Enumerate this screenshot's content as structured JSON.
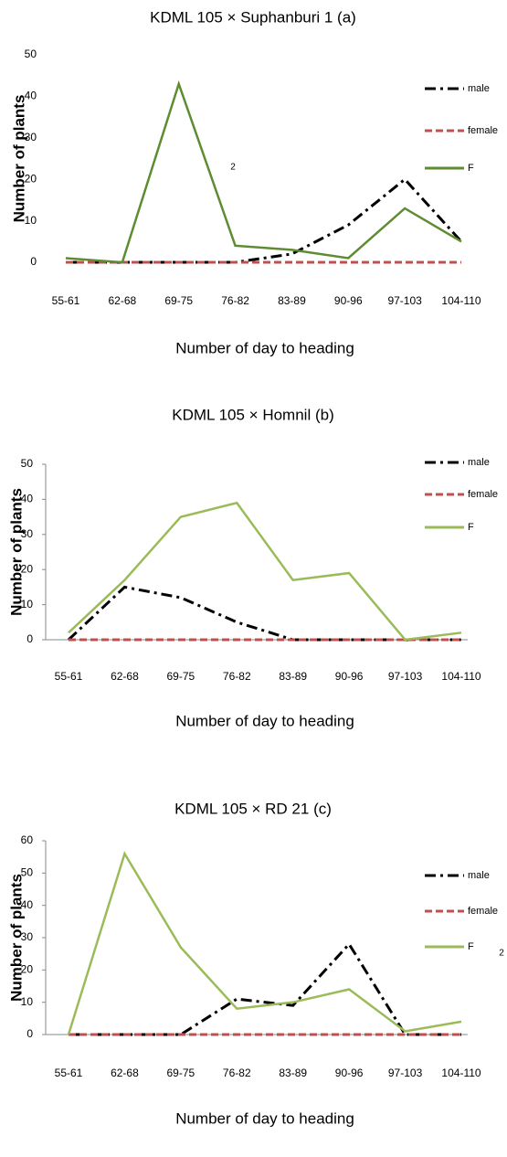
{
  "chart_data": [
    {
      "type": "line",
      "title": "KDML 105 × Suphanburi 1 (a)",
      "y_label": "Number of plants",
      "x_label": "Number of day to heading",
      "categories": [
        "55-61",
        "62-68",
        "69-75",
        "76-82",
        "83-89",
        "90-96",
        "97-103",
        "104-110"
      ],
      "series": [
        {
          "name": "male",
          "color": "#000000",
          "values": [
            0,
            0,
            0,
            0,
            2,
            9,
            20,
            5
          ]
        },
        {
          "name": "female",
          "color": "#c0504d",
          "values": [
            0,
            0,
            0,
            0,
            0,
            0,
            0,
            0
          ]
        },
        {
          "name": "F",
          "color": "#5e8c31",
          "values": [
            1,
            0,
            43,
            4,
            3,
            1,
            13,
            5
          ]
        }
      ],
      "ylim": [
        0,
        50
      ],
      "yticks": [
        0,
        10,
        20,
        30,
        40,
        50
      ],
      "axis_lines": false,
      "legend": "right",
      "annotation": "2"
    },
    {
      "type": "line",
      "title": "KDML 105 × Homnil (b)",
      "y_label": "Number of plants",
      "x_label": "Number of day to heading",
      "categories": [
        "55-61",
        "62-68",
        "69-75",
        "76-82",
        "83-89",
        "90-96",
        "97-103",
        "104-110"
      ],
      "series": [
        {
          "name": "male",
          "color": "#000000",
          "values": [
            0,
            15,
            12,
            5,
            0,
            0,
            0,
            0
          ]
        },
        {
          "name": "female",
          "color": "#c0504d",
          "values": [
            0,
            0,
            0,
            0,
            0,
            0,
            0,
            0
          ]
        },
        {
          "name": "F",
          "color": "#9bbb59",
          "values": [
            2,
            17,
            35,
            39,
            17,
            19,
            0,
            2
          ]
        }
      ],
      "ylim": [
        0,
        50
      ],
      "yticks": [
        0,
        10,
        20,
        30,
        40,
        50
      ],
      "axis_lines": true,
      "legend": "right"
    },
    {
      "type": "line",
      "title": "KDML 105 × RD 21 (c)",
      "y_label": "Number of plants",
      "x_label": "Number of day to heading",
      "categories": [
        "55-61",
        "62-68",
        "69-75",
        "76-82",
        "83-89",
        "90-96",
        "97-103",
        "104-110"
      ],
      "series": [
        {
          "name": "male",
          "color": "#000000",
          "values": [
            0,
            0,
            0,
            11,
            9,
            28,
            0,
            0
          ]
        },
        {
          "name": "female",
          "color": "#c0504d",
          "values": [
            0,
            0,
            0,
            0,
            0,
            0,
            0,
            0
          ]
        },
        {
          "name": "F",
          "color": "#9bbb59",
          "values": [
            0,
            56,
            27,
            8,
            10,
            14,
            1,
            4
          ]
        }
      ],
      "ylim": [
        0,
        60
      ],
      "yticks": [
        0,
        10,
        20,
        30,
        40,
        50,
        60
      ],
      "axis_lines": true,
      "legend": "right",
      "annotation": "2"
    }
  ]
}
